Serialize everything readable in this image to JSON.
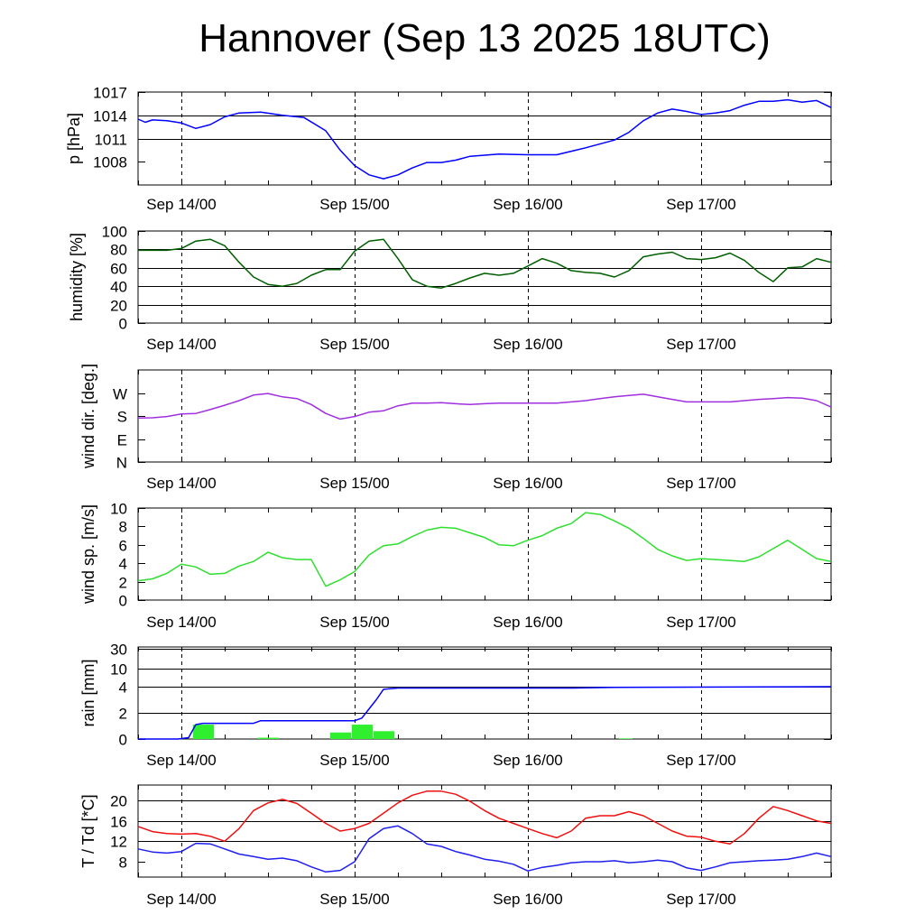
{
  "title": "Hannover (Sep 13 2025 18UTC)",
  "x_axis": {
    "tick_labels": [
      "Sep 14/00",
      "Sep 15/00",
      "Sep 16/00",
      "Sep 17/00"
    ],
    "tick_hours": [
      6,
      30,
      54,
      78
    ],
    "range_hours": [
      0,
      96
    ]
  },
  "chart_data": [
    {
      "type": "line",
      "id": "pressure",
      "ylabel": "p [hPa]",
      "ylim": [
        1005,
        1017
      ],
      "yticks": [
        1008,
        1011,
        1014,
        1017
      ],
      "ytick_labels": [
        "1008",
        "1011",
        "1014",
        "1017"
      ],
      "grid": true,
      "series": [
        {
          "color": "#0000ff",
          "x": [
            0,
            1,
            2,
            4,
            6,
            8,
            10,
            12,
            14,
            17,
            20,
            23,
            26,
            28,
            30,
            32,
            34,
            36,
            38,
            40,
            42,
            44,
            46,
            50,
            54,
            58,
            62,
            66,
            68,
            70,
            72,
            74,
            76,
            78,
            80,
            82,
            84,
            86,
            88,
            90,
            92,
            94,
            96
          ],
          "y": [
            1013.5,
            1013.1,
            1013.4,
            1013.3,
            1013.0,
            1012.3,
            1012.8,
            1013.8,
            1014.3,
            1014.4,
            1014.0,
            1013.7,
            1012.0,
            1009.5,
            1007.5,
            1006.3,
            1005.8,
            1006.3,
            1007.2,
            1007.9,
            1007.9,
            1008.2,
            1008.7,
            1009.0,
            1008.9,
            1008.9,
            1009.8,
            1010.8,
            1011.8,
            1013.3,
            1014.3,
            1014.8,
            1014.5,
            1014.1,
            1014.3,
            1014.6,
            1015.3,
            1015.8,
            1015.8,
            1016.0,
            1015.7,
            1015.9,
            1015.0
          ]
        }
      ]
    },
    {
      "type": "line",
      "id": "humidity",
      "ylabel": "humidity [%]",
      "ylim": [
        0,
        100
      ],
      "yticks": [
        0,
        20,
        40,
        60,
        80,
        100
      ],
      "ytick_labels": [
        "0",
        "20",
        "40",
        "60",
        "80",
        "100"
      ],
      "grid": true,
      "series": [
        {
          "color": "#005f00",
          "x": [
            0,
            2,
            4,
            6,
            8,
            10,
            12,
            14,
            16,
            18,
            20,
            22,
            24,
            26,
            28,
            30,
            32,
            34,
            36,
            38,
            40,
            42,
            44,
            46,
            48,
            50,
            52,
            54,
            56,
            58,
            60,
            62,
            64,
            66,
            68,
            70,
            72,
            74,
            76,
            78,
            80,
            82,
            84,
            86,
            88,
            90,
            92,
            94,
            96
          ],
          "y": [
            79,
            79,
            79,
            81,
            89,
            91,
            84,
            66,
            50,
            42,
            40,
            43,
            52,
            58,
            58,
            78,
            89,
            91,
            70,
            47,
            40,
            38,
            43,
            49,
            54,
            52,
            54,
            62,
            70,
            65,
            57,
            55,
            54,
            50,
            57,
            72,
            75,
            77,
            70,
            69,
            71,
            76,
            68,
            55,
            45,
            60,
            61,
            70,
            66
          ]
        }
      ]
    },
    {
      "type": "line",
      "id": "wind_direction",
      "ylabel": "wind dir. [deg.]",
      "ylim": [
        0,
        360
      ],
      "yticks": [
        0,
        90,
        180,
        270
      ],
      "ytick_labels": [
        "N",
        "E",
        "S",
        "W"
      ],
      "grid": false,
      "series": [
        {
          "color": "#9f2fdf",
          "x": [
            0,
            2,
            4,
            6,
            8,
            10,
            12,
            14,
            16,
            18,
            20,
            22,
            24,
            26,
            28,
            30,
            32,
            34,
            36,
            38,
            40,
            42,
            44,
            46,
            48,
            50,
            52,
            54,
            56,
            58,
            60,
            62,
            64,
            66,
            68,
            70,
            72,
            74,
            76,
            78,
            80,
            82,
            84,
            86,
            88,
            90,
            92,
            94,
            96
          ],
          "y": [
            172,
            173,
            178,
            188,
            190,
            205,
            222,
            240,
            262,
            268,
            255,
            248,
            225,
            190,
            168,
            178,
            195,
            200,
            220,
            230,
            230,
            232,
            228,
            225,
            228,
            230,
            230,
            230,
            230,
            230,
            235,
            240,
            248,
            255,
            260,
            265,
            255,
            245,
            235,
            235,
            235,
            235,
            240,
            245,
            248,
            252,
            250,
            240,
            215
          ]
        }
      ]
    },
    {
      "type": "line",
      "id": "wind_speed",
      "ylabel": "wind sp. [m/s]",
      "ylim": [
        0,
        10
      ],
      "yticks": [
        0,
        2,
        4,
        6,
        8,
        10
      ],
      "ytick_labels": [
        "0",
        "2",
        "4",
        "6",
        "8",
        "10"
      ],
      "grid": false,
      "series": [
        {
          "color": "#2fdf2f",
          "x": [
            0,
            2,
            4,
            6,
            8,
            10,
            12,
            14,
            16,
            18,
            20,
            22,
            24,
            26,
            28,
            30,
            32,
            34,
            36,
            38,
            40,
            42,
            44,
            46,
            48,
            50,
            52,
            54,
            56,
            58,
            60,
            62,
            64,
            66,
            68,
            70,
            72,
            74,
            76,
            78,
            80,
            82,
            84,
            86,
            88,
            90,
            92,
            94,
            96
          ],
          "y": [
            2.1,
            2.3,
            2.9,
            3.9,
            3.6,
            2.8,
            2.9,
            3.7,
            4.2,
            5.2,
            4.6,
            4.4,
            4.4,
            1.5,
            2.2,
            3.1,
            4.9,
            5.9,
            6.1,
            6.9,
            7.6,
            7.9,
            7.8,
            7.3,
            6.8,
            6.0,
            5.9,
            6.5,
            7.0,
            7.8,
            8.3,
            9.5,
            9.3,
            8.6,
            7.8,
            6.7,
            5.5,
            4.8,
            4.3,
            4.5,
            4.4,
            4.3,
            4.2,
            4.7,
            5.6,
            6.5,
            5.5,
            4.5,
            4.2
          ]
        }
      ]
    },
    {
      "type": "bar",
      "id": "rain",
      "ylabel": "rain [mm]",
      "yscale": "piecewise",
      "ytick_values": [
        0,
        2,
        4,
        10,
        30
      ],
      "ytick_labels": [
        "0",
        "2",
        "4",
        "10",
        "30"
      ],
      "grid": true,
      "bars": {
        "color": "#2fef2f",
        "x_start": [
          7.6,
          16.6,
          26.6,
          29.6,
          32.6,
          66.6
        ],
        "x_end": [
          10.5,
          19.5,
          29.5,
          32.5,
          35.5,
          68.5
        ],
        "values": [
          1.1,
          0.1,
          0.5,
          1.1,
          0.6,
          0.05
        ]
      },
      "series": [
        {
          "color": "#0000ff",
          "x": [
            0,
            5.5,
            7,
            8,
            9,
            16,
            17,
            30,
            31,
            32,
            33,
            34,
            36,
            60,
            66,
            96
          ],
          "y": [
            0,
            0,
            0.1,
            1.1,
            1.2,
            1.2,
            1.4,
            1.4,
            1.6,
            2.3,
            3.0,
            3.8,
            3.9,
            3.9,
            3.95,
            4.0
          ]
        }
      ]
    },
    {
      "type": "line",
      "id": "temperature",
      "ylabel": "T / Td [*C]",
      "ylim": [
        5,
        23
      ],
      "yticks": [
        8,
        12,
        16,
        20
      ],
      "ytick_labels": [
        "8",
        "12",
        "16",
        "20"
      ],
      "grid": true,
      "series": [
        {
          "color": "#ef0f0f",
          "x": [
            0,
            2,
            4,
            6,
            8,
            10,
            12,
            14,
            16,
            18,
            20,
            22,
            24,
            26,
            28,
            30,
            32,
            34,
            36,
            38,
            40,
            42,
            44,
            46,
            48,
            50,
            52,
            54,
            56,
            58,
            60,
            62,
            64,
            66,
            68,
            70,
            72,
            74,
            76,
            78,
            80,
            82,
            84,
            86,
            88,
            90,
            92,
            94,
            96
          ],
          "y": [
            14.9,
            13.9,
            13.5,
            13.4,
            13.5,
            13.0,
            12.0,
            14.5,
            18.0,
            19.5,
            20.2,
            19.4,
            17.5,
            15.5,
            14.0,
            14.5,
            15.5,
            17.5,
            19.5,
            21.0,
            21.8,
            21.8,
            21.2,
            19.8,
            18.0,
            16.5,
            15.5,
            14.5,
            13.5,
            12.7,
            14.0,
            16.5,
            17.0,
            17.0,
            17.8,
            17.0,
            15.5,
            14.0,
            13.0,
            12.8,
            12.0,
            11.5,
            13.5,
            16.5,
            18.8,
            18.0,
            17.0,
            16.0,
            15.5
          ]
        }
      ]
    },
    {
      "type": "line",
      "id": "dewpoint",
      "panel": "temperature",
      "series": [
        {
          "color": "#1f1fef",
          "x": [
            0,
            2,
            4,
            6,
            8,
            10,
            12,
            14,
            16,
            18,
            20,
            22,
            24,
            26,
            28,
            30,
            32,
            34,
            36,
            38,
            40,
            42,
            44,
            46,
            48,
            50,
            52,
            54,
            56,
            58,
            60,
            62,
            64,
            66,
            68,
            70,
            72,
            74,
            76,
            78,
            80,
            82,
            84,
            86,
            88,
            90,
            92,
            94,
            96
          ],
          "y": [
            10.5,
            9.9,
            9.7,
            10.0,
            11.6,
            11.5,
            10.5,
            9.5,
            9.0,
            8.5,
            8.7,
            8.2,
            7.0,
            6.0,
            6.3,
            8.0,
            12.5,
            14.5,
            15.0,
            13.5,
            11.5,
            11.0,
            10.0,
            9.3,
            8.5,
            8.1,
            7.5,
            6.2,
            6.9,
            7.3,
            7.8,
            8.0,
            8.0,
            8.2,
            7.8,
            8.0,
            8.3,
            8.0,
            6.8,
            6.3,
            7.0,
            7.8,
            8.0,
            8.2,
            8.3,
            8.5,
            9.0,
            9.7,
            9.0
          ]
        }
      ]
    }
  ]
}
